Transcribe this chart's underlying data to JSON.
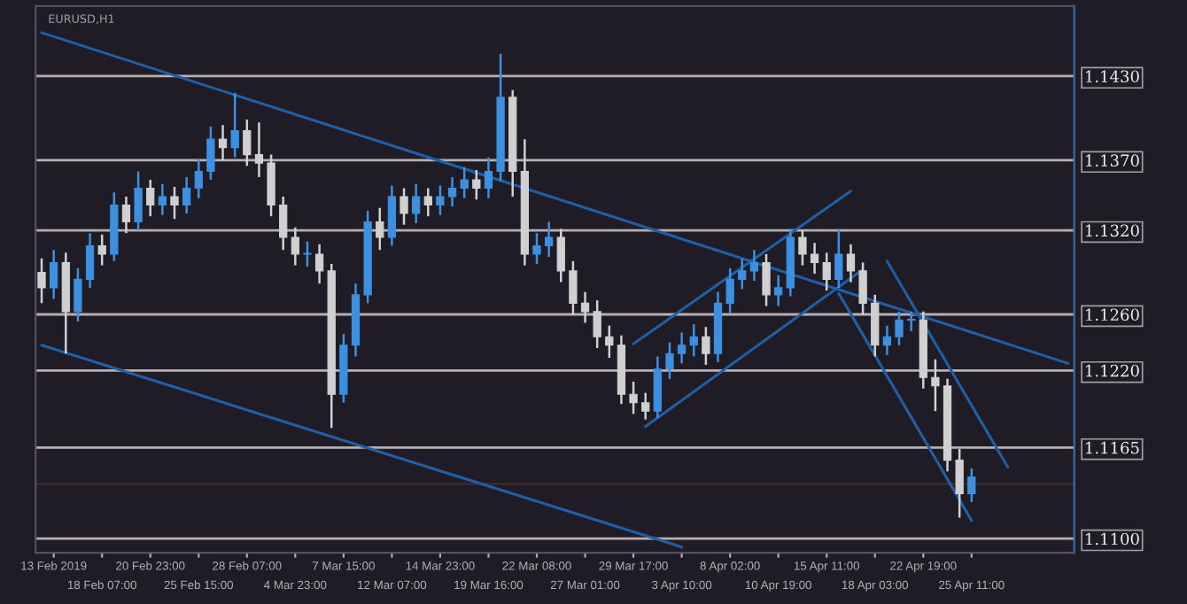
{
  "chart_data": {
    "type": "candlestick",
    "title": "EURUSD,H1",
    "categories": [
      null,
      "13 Feb 2019",
      null,
      null,
      null,
      "18 Feb 07:00",
      null,
      null,
      null,
      "20 Feb 23:00",
      null,
      null,
      null,
      "25 Feb 15:00",
      null,
      null,
      null,
      "28 Feb 07:00",
      null,
      null,
      null,
      "4 Mar 23:00",
      null,
      null,
      null,
      "7 Mar 15:00",
      null,
      null,
      null,
      "12 Mar 07:00",
      null,
      null,
      null,
      "14 Mar 23:00",
      null,
      null,
      null,
      "19 Mar 16:00",
      null,
      null,
      null,
      "22 Mar 08:00",
      null,
      null,
      null,
      "27 Mar 01:00",
      null,
      null,
      null,
      "29 Mar 17:00",
      null,
      null,
      null,
      "3 Apr 10:00",
      null,
      null,
      null,
      "8 Apr 02:00",
      null,
      null,
      null,
      "10 Apr 19:00",
      null,
      null,
      null,
      "15 Apr 11:00",
      null,
      null,
      null,
      "18 Apr 03:00",
      null,
      null,
      null,
      "22 Apr 19:00",
      null,
      null,
      null,
      "25 Apr 11:00",
      null,
      null,
      null,
      null,
      null,
      null,
      null,
      null
    ],
    "ohlc": [
      [
        1.129,
        1.13,
        1.1268,
        1.1279
      ],
      [
        1.1279,
        1.1306,
        1.1271,
        1.1297
      ],
      [
        1.1297,
        1.1304,
        1.1232,
        1.1262
      ],
      [
        1.1262,
        1.1293,
        1.1255,
        1.1285
      ],
      [
        1.1285,
        1.1318,
        1.1279,
        1.1309
      ],
      [
        1.1309,
        1.1317,
        1.1295,
        1.1303
      ],
      [
        1.1303,
        1.1347,
        1.1298,
        1.1338
      ],
      [
        1.1338,
        1.1344,
        1.1318,
        1.1326
      ],
      [
        1.1326,
        1.1362,
        1.132,
        1.135
      ],
      [
        1.135,
        1.1356,
        1.133,
        1.1338
      ],
      [
        1.1338,
        1.1353,
        1.1331,
        1.1344
      ],
      [
        1.1344,
        1.1351,
        1.1328,
        1.1338
      ],
      [
        1.1338,
        1.1358,
        1.1332,
        1.135
      ],
      [
        1.135,
        1.1371,
        1.1343,
        1.1362
      ],
      [
        1.1362,
        1.1394,
        1.1356,
        1.1385
      ],
      [
        1.1385,
        1.1395,
        1.137,
        1.1379
      ],
      [
        1.1379,
        1.1418,
        1.1372,
        1.1391
      ],
      [
        1.1391,
        1.1399,
        1.1366,
        1.1374
      ],
      [
        1.1374,
        1.1397,
        1.1358,
        1.1368
      ],
      [
        1.1368,
        1.1374,
        1.133,
        1.1338
      ],
      [
        1.1338,
        1.1344,
        1.1306,
        1.1315
      ],
      [
        1.1315,
        1.1322,
        1.1295,
        1.1303
      ],
      [
        1.1303,
        1.1312,
        1.1294,
        1.1303
      ],
      [
        1.1303,
        1.131,
        1.1282,
        1.1291
      ],
      [
        1.1291,
        1.1296,
        1.1179,
        1.1203
      ],
      [
        1.1203,
        1.1246,
        1.1197,
        1.1238
      ],
      [
        1.1238,
        1.1282,
        1.123,
        1.1274
      ],
      [
        1.1274,
        1.1334,
        1.1268,
        1.1326
      ],
      [
        1.1326,
        1.1336,
        1.1306,
        1.1315
      ],
      [
        1.1315,
        1.1352,
        1.1309,
        1.1344
      ],
      [
        1.1344,
        1.135,
        1.1324,
        1.1332
      ],
      [
        1.1332,
        1.1353,
        1.1325,
        1.1344
      ],
      [
        1.1344,
        1.135,
        1.133,
        1.1338
      ],
      [
        1.1338,
        1.1352,
        1.1331,
        1.1344
      ],
      [
        1.1344,
        1.1358,
        1.1337,
        1.135
      ],
      [
        1.135,
        1.1365,
        1.1343,
        1.1356
      ],
      [
        1.1356,
        1.1363,
        1.1342,
        1.135
      ],
      [
        1.135,
        1.1372,
        1.1343,
        1.1362
      ],
      [
        1.1362,
        1.1446,
        1.1355,
        1.1415
      ],
      [
        1.1415,
        1.142,
        1.1344,
        1.1362
      ],
      [
        1.1362,
        1.1385,
        1.1295,
        1.1303
      ],
      [
        1.1303,
        1.1318,
        1.1296,
        1.1309
      ],
      [
        1.1309,
        1.1326,
        1.1301,
        1.1315
      ],
      [
        1.1315,
        1.1321,
        1.1283,
        1.1291
      ],
      [
        1.1291,
        1.1298,
        1.126,
        1.1268
      ],
      [
        1.1268,
        1.1276,
        1.1254,
        1.1262
      ],
      [
        1.1262,
        1.127,
        1.1236,
        1.1244
      ],
      [
        1.1244,
        1.1252,
        1.1229,
        1.1238
      ],
      [
        1.1238,
        1.1245,
        1.1196,
        1.1203
      ],
      [
        1.1203,
        1.1212,
        1.1189,
        1.1197
      ],
      [
        1.1197,
        1.1204,
        1.1185,
        1.1191
      ],
      [
        1.1191,
        1.123,
        1.1186,
        1.1221
      ],
      [
        1.1221,
        1.124,
        1.1214,
        1.1232
      ],
      [
        1.1232,
        1.1247,
        1.1225,
        1.1238
      ],
      [
        1.1238,
        1.1253,
        1.123,
        1.1244
      ],
      [
        1.1244,
        1.1251,
        1.1224,
        1.1232
      ],
      [
        1.1232,
        1.1276,
        1.1226,
        1.1268
      ],
      [
        1.1268,
        1.1293,
        1.1261,
        1.1285
      ],
      [
        1.1285,
        1.13,
        1.1278,
        1.1291
      ],
      [
        1.1291,
        1.1306,
        1.1284,
        1.1297
      ],
      [
        1.1297,
        1.1303,
        1.1266,
        1.1274
      ],
      [
        1.1274,
        1.1288,
        1.1266,
        1.1279
      ],
      [
        1.1279,
        1.1321,
        1.1273,
        1.1315
      ],
      [
        1.1315,
        1.132,
        1.1295,
        1.1303
      ],
      [
        1.1303,
        1.1311,
        1.1289,
        1.1297
      ],
      [
        1.1297,
        1.1304,
        1.1277,
        1.1285
      ],
      [
        1.1285,
        1.1321,
        1.1279,
        1.1303
      ],
      [
        1.1303,
        1.131,
        1.1283,
        1.1291
      ],
      [
        1.1291,
        1.1297,
        1.126,
        1.1268
      ],
      [
        1.1268,
        1.1274,
        1.123,
        1.1238
      ],
      [
        1.1238,
        1.1252,
        1.1231,
        1.1244
      ],
      [
        1.1244,
        1.1262,
        1.1238,
        1.1256
      ],
      [
        1.1256,
        1.1262,
        1.1248,
        1.1256
      ],
      [
        1.1256,
        1.1262,
        1.1207,
        1.1215
      ],
      [
        1.1215,
        1.1228,
        1.1191,
        1.1209
      ],
      [
        1.1209,
        1.1214,
        1.1148,
        1.1156
      ],
      [
        1.1156,
        1.1164,
        1.1115,
        1.1132
      ],
      [
        1.1132,
        1.115,
        1.1126,
        1.1144
      ],
      null,
      null,
      null,
      null,
      null,
      null,
      null,
      null
    ],
    "series": [
      {
        "type": "line",
        "color": "#1f5fa8",
        "values": [
          1.1461,
          null,
          null,
          null,
          null,
          null,
          null,
          null,
          null,
          null,
          null,
          null,
          null,
          null,
          null,
          null,
          null,
          null,
          null,
          null,
          null,
          null,
          null,
          null,
          null,
          null,
          null,
          null,
          null,
          null,
          null,
          null,
          null,
          null,
          null,
          null,
          null,
          null,
          null,
          null,
          null,
          null,
          null,
          null,
          null,
          null,
          null,
          null,
          null,
          null,
          null,
          null,
          null,
          null,
          null,
          null,
          null,
          null,
          null,
          null,
          null,
          null,
          null,
          null,
          null,
          null,
          null,
          null,
          null,
          null,
          null,
          null,
          null,
          null,
          null,
          null,
          null,
          null,
          null,
          null,
          null,
          null,
          null,
          null,
          null,
          1.1225
        ]
      },
      {
        "type": "line",
        "color": "#1f5fa8",
        "values": [
          1.1238,
          null,
          null,
          null,
          null,
          null,
          null,
          null,
          null,
          null,
          null,
          null,
          null,
          null,
          null,
          null,
          null,
          null,
          null,
          null,
          null,
          null,
          null,
          null,
          null,
          null,
          null,
          null,
          null,
          null,
          null,
          null,
          null,
          null,
          null,
          null,
          null,
          null,
          null,
          null,
          null,
          null,
          null,
          null,
          null,
          null,
          null,
          null,
          null,
          null,
          null,
          null,
          null,
          1.1094,
          null,
          null,
          null,
          null,
          null,
          null,
          null,
          null,
          null,
          null,
          null,
          null,
          null,
          null,
          null,
          null,
          null,
          null,
          null,
          null,
          null,
          null,
          null,
          null,
          null,
          null,
          null,
          null,
          null,
          null,
          null,
          null
        ]
      },
      {
        "type": "line",
        "color": "#1f5fa8",
        "values": [
          null,
          null,
          null,
          null,
          null,
          null,
          null,
          null,
          null,
          null,
          null,
          null,
          null,
          null,
          null,
          null,
          null,
          null,
          null,
          null,
          null,
          null,
          null,
          null,
          null,
          null,
          null,
          null,
          null,
          null,
          null,
          null,
          null,
          null,
          null,
          null,
          null,
          null,
          null,
          null,
          null,
          null,
          null,
          null,
          null,
          null,
          null,
          null,
          null,
          1.1239,
          null,
          null,
          null,
          null,
          null,
          null,
          null,
          null,
          null,
          null,
          null,
          null,
          null,
          null,
          null,
          null,
          null,
          1.1348,
          null,
          null,
          null,
          null,
          null,
          null,
          null,
          null,
          null,
          null,
          null,
          null,
          null,
          null,
          null,
          null,
          null,
          null
        ]
      },
      {
        "type": "line",
        "color": "#1f5fa8",
        "values": [
          null,
          null,
          null,
          null,
          null,
          null,
          null,
          null,
          null,
          null,
          null,
          null,
          null,
          null,
          null,
          null,
          null,
          null,
          null,
          null,
          null,
          null,
          null,
          null,
          null,
          null,
          null,
          null,
          null,
          null,
          null,
          null,
          null,
          null,
          null,
          null,
          null,
          null,
          null,
          null,
          null,
          null,
          null,
          null,
          null,
          null,
          null,
          null,
          null,
          null,
          1.118,
          null,
          null,
          null,
          null,
          null,
          null,
          null,
          null,
          null,
          null,
          null,
          null,
          null,
          null,
          null,
          null,
          null,
          1.1292,
          null,
          null,
          null,
          null,
          null,
          null,
          null,
          null,
          null,
          null,
          null,
          null,
          null,
          null,
          null,
          null,
          null
        ]
      },
      {
        "type": "line",
        "color": "#1f5fa8",
        "values": [
          null,
          null,
          null,
          null,
          null,
          null,
          null,
          null,
          null,
          null,
          null,
          null,
          null,
          null,
          null,
          null,
          null,
          null,
          null,
          null,
          null,
          null,
          null,
          null,
          null,
          null,
          null,
          null,
          null,
          null,
          null,
          null,
          null,
          null,
          null,
          null,
          null,
          null,
          null,
          null,
          null,
          null,
          null,
          null,
          null,
          null,
          null,
          null,
          null,
          null,
          null,
          null,
          null,
          null,
          null,
          null,
          null,
          null,
          null,
          null,
          null,
          null,
          null,
          null,
          null,
          null,
          null,
          null,
          null,
          null,
          1.1298,
          null,
          null,
          null,
          null,
          null,
          null,
          null,
          null,
          null,
          1.1151,
          null,
          null,
          null,
          null,
          null
        ]
      },
      {
        "type": "line",
        "color": "#1f5fa8",
        "values": [
          null,
          null,
          null,
          null,
          null,
          null,
          null,
          null,
          null,
          null,
          null,
          null,
          null,
          null,
          null,
          null,
          null,
          null,
          null,
          null,
          null,
          null,
          null,
          null,
          null,
          null,
          null,
          null,
          null,
          null,
          null,
          null,
          null,
          null,
          null,
          null,
          null,
          null,
          null,
          null,
          null,
          null,
          null,
          null,
          null,
          null,
          null,
          null,
          null,
          null,
          null,
          null,
          null,
          null,
          null,
          null,
          null,
          null,
          null,
          null,
          null,
          null,
          null,
          null,
          null,
          null,
          1.1275,
          null,
          null,
          null,
          null,
          null,
          null,
          null,
          null,
          null,
          null,
          1.1113,
          null,
          null,
          null,
          null,
          null,
          null,
          null,
          null
        ]
      }
    ],
    "ylim": [
      1.109,
      1.148
    ],
    "yticks": [
      {
        "value": 1.143,
        "label": "1.1430"
      },
      {
        "value": 1.137,
        "label": "1.1370"
      },
      {
        "value": 1.132,
        "label": "1.1320"
      },
      {
        "value": 1.126,
        "label": "1.1260"
      },
      {
        "value": 1.122,
        "label": "1.1220"
      },
      {
        "value": 1.1165,
        "label": "1.1165"
      },
      {
        "value": 1.11,
        "label": "1.1100"
      }
    ],
    "ref_lines": [
      {
        "axis": "y",
        "value": 1.143,
        "color": "#b8b0b0"
      },
      {
        "axis": "y",
        "value": 1.137,
        "color": "#b8b0b0"
      },
      {
        "axis": "y",
        "value": 1.132,
        "color": "#b8b0b0"
      },
      {
        "axis": "y",
        "value": 1.126,
        "color": "#b8b0b0"
      },
      {
        "axis": "y",
        "value": 1.122,
        "color": "#b8b0b0"
      },
      {
        "axis": "y",
        "value": 1.1165,
        "color": "#b8b0b0"
      },
      {
        "axis": "y",
        "value": 1.11,
        "color": "#b8b0b0"
      },
      {
        "axis": "y",
        "value": 1.1139,
        "color": "#3a2a32"
      }
    ]
  }
}
